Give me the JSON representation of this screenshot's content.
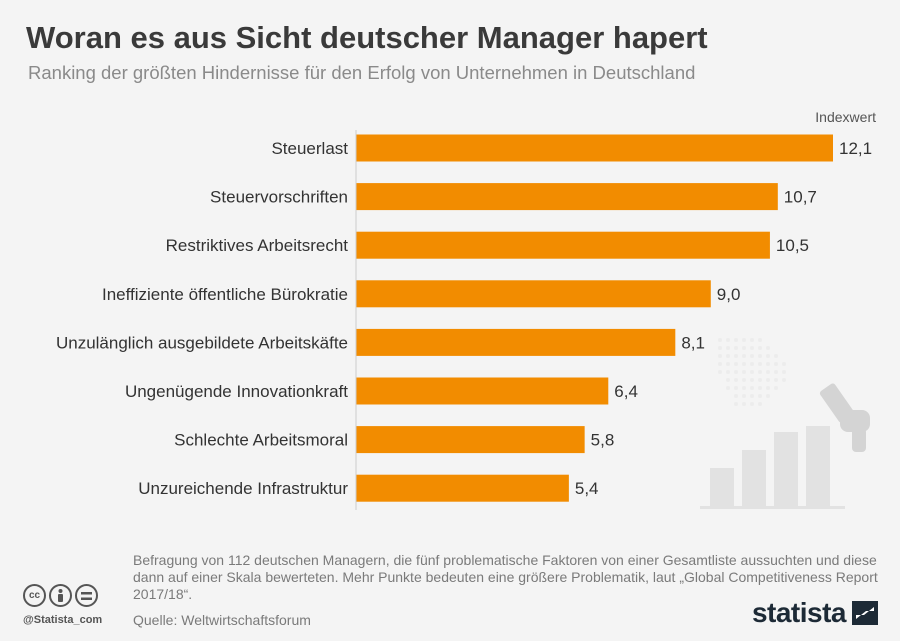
{
  "title": "Woran es aus Sicht deutscher Manager hapert",
  "subtitle": "Ranking der größten Hindernisse für den Erfolg von Unternehmen in Deutschland",
  "chart_data": {
    "type": "bar",
    "orientation": "horizontal",
    "unit_label": "Indexwert",
    "categories": [
      "Steuerlast",
      "Steuervorschriften",
      "Restriktives Arbeitsrecht",
      "Ineffiziente öffentliche Bürokratie",
      "Unzulänglich ausgebildete Arbeitskäfte",
      "Ungenügende Innovationkraft",
      "Schlechte Arbeitsmoral",
      "Unzureichende Infrastruktur"
    ],
    "values": [
      12.1,
      10.7,
      10.5,
      9.0,
      8.1,
      6.4,
      5.8,
      5.4
    ],
    "value_labels": [
      "12,1",
      "10,7",
      "10,5",
      "9,0",
      "8,1",
      "6,4",
      "5,8",
      "5,4"
    ],
    "bar_color": "#f28c00",
    "grid": false,
    "xlim": [
      0,
      12.1
    ]
  },
  "footnote": "Befragung von 112 deutschen Managern, die fünf problematische Faktoren von einer Gesamtliste aussuchten und diese dann auf einer Skala bewerteten. Mehr Punkte bedeuten eine größere Problematik, laut „Global Competitiveness Report 2017/18“.",
  "source": "Quelle: Weltwirtschaftsforum",
  "branding": {
    "handle": "@Statista_com",
    "logo_text": "statista",
    "cc_icons": [
      "cc",
      "by",
      "nd"
    ]
  }
}
